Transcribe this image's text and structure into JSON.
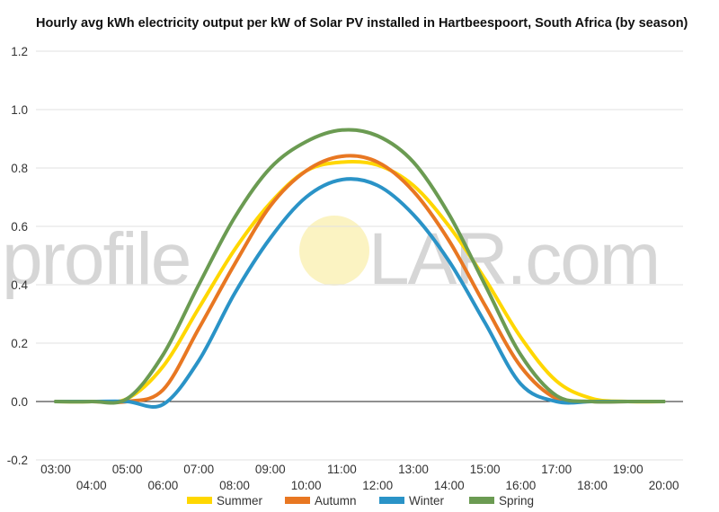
{
  "watermark": {
    "left": "profile",
    "right": "LAR.com"
  },
  "chart_data": {
    "type": "line",
    "title": "Hourly avg kWh electricity output per kW of Solar PV installed in Hartbeespoort, South Africa (by season)",
    "xlabel": "",
    "ylabel": "",
    "ylim": [
      -0.2,
      1.2
    ],
    "yticks": [
      "-0.2",
      "0.0",
      "0.2",
      "0.4",
      "0.6",
      "0.8",
      "1.0",
      "1.2"
    ],
    "x": [
      "03:00",
      "04:00",
      "05:00",
      "06:00",
      "07:00",
      "08:00",
      "09:00",
      "10:00",
      "11:00",
      "12:00",
      "13:00",
      "14:00",
      "15:00",
      "16:00",
      "17:00",
      "18:00",
      "19:00",
      "20:00"
    ],
    "grid": true,
    "legend_position": "bottom",
    "series": [
      {
        "name": "Summer",
        "color": "#ffd700",
        "values": [
          0.0,
          0.0,
          0.01,
          0.12,
          0.32,
          0.52,
          0.68,
          0.79,
          0.82,
          0.81,
          0.74,
          0.6,
          0.42,
          0.22,
          0.07,
          0.01,
          0.0,
          0.0
        ]
      },
      {
        "name": "Autumn",
        "color": "#e87722",
        "values": [
          0.0,
          0.0,
          0.0,
          0.04,
          0.25,
          0.47,
          0.67,
          0.79,
          0.84,
          0.82,
          0.72,
          0.55,
          0.33,
          0.12,
          0.01,
          0.0,
          0.0,
          0.0
        ]
      },
      {
        "name": "Winter",
        "color": "#2a93c7",
        "values": [
          0.0,
          0.0,
          0.0,
          -0.01,
          0.14,
          0.37,
          0.56,
          0.7,
          0.76,
          0.74,
          0.64,
          0.48,
          0.27,
          0.06,
          0.0,
          0.0,
          0.0,
          0.0
        ]
      },
      {
        "name": "Spring",
        "color": "#6b9b52",
        "values": [
          0.0,
          0.0,
          0.01,
          0.16,
          0.4,
          0.63,
          0.8,
          0.89,
          0.93,
          0.91,
          0.82,
          0.64,
          0.4,
          0.16,
          0.02,
          0.0,
          0.0,
          0.0
        ]
      }
    ]
  }
}
